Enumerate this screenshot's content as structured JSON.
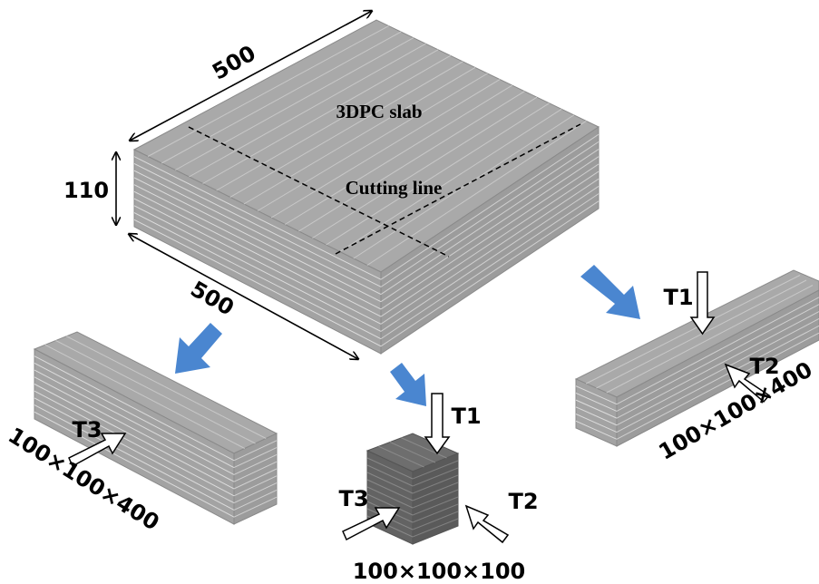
{
  "slab": {
    "label": "3DPC slab",
    "cutting_line": "Cutting line",
    "dimensions": {
      "length": "500",
      "width": "500",
      "height": "110"
    }
  },
  "specimens": [
    {
      "size": "100×100×400",
      "loads": [
        "T3"
      ]
    },
    {
      "size": "100×100×100",
      "loads": [
        "T1",
        "T2",
        "T3"
      ]
    },
    {
      "size": "100×100×400",
      "loads": [
        "T1",
        "T2"
      ]
    }
  ]
}
